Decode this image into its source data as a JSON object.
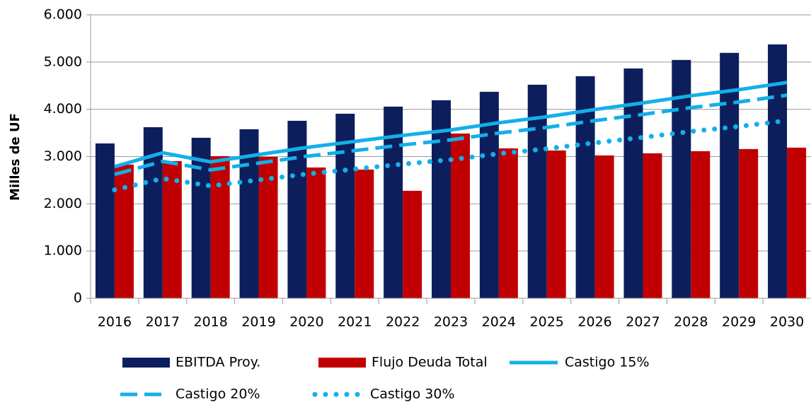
{
  "chart_data": {
    "type": "bar_line",
    "y_label": "Milles de UF",
    "categories": [
      "2016",
      "2017",
      "2018",
      "2019",
      "2020",
      "2021",
      "2022",
      "2023",
      "2024",
      "2025",
      "2026",
      "2027",
      "2028",
      "2029",
      "2030"
    ],
    "ylim": [
      0,
      6000
    ],
    "yticks": [
      0,
      {
        "value": 1000,
        "label": "1.000"
      },
      {
        "value": 2000,
        "label": "2.000"
      },
      {
        "value": 3000,
        "label": "3.000"
      },
      {
        "value": 4000,
        "label": "4.000"
      },
      {
        "value": 5000,
        "label": "5.000"
      },
      {
        "value": 6000,
        "label": "6.000"
      }
    ],
    "series": [
      {
        "name": "EBITDA Proy.",
        "color": "#0c1f5c",
        "kind": "bar",
        "values": [
          3278,
          3622,
          3398,
          3578,
          3757,
          3907,
          4057,
          4192,
          4371,
          4521,
          4701,
          4865,
          5045,
          5195,
          5374
        ]
      },
      {
        "name": "Flujo Deuda Total",
        "color": "#c00000",
        "kind": "bar",
        "values": [
          2830,
          2904,
          3009,
          2994,
          2769,
          2725,
          2275,
          3488,
          3174,
          3129,
          3024,
          3069,
          3114,
          3159,
          3189
        ]
      },
      {
        "name": "Castigo 15%",
        "color": "#12b0ea",
        "kind": "line",
        "style": "solid",
        "values": [
          2786,
          3079,
          2888,
          3041,
          3193,
          3321,
          3448,
          3563,
          3715,
          3843,
          3996,
          4135,
          4288,
          4416,
          4568
        ]
      },
      {
        "name": "Castigo 20%",
        "color": "#12b0ea",
        "kind": "line",
        "style": "dashed",
        "values": [
          2622,
          2898,
          2718,
          2862,
          3006,
          3126,
          3246,
          3354,
          3497,
          3617,
          3761,
          3892,
          4036,
          4156,
          4299
        ]
      },
      {
        "name": "Castigo 30%",
        "color": "#12b0ea",
        "kind": "line",
        "style": "dotted",
        "values": [
          2295,
          2535,
          2379,
          2505,
          2630,
          2735,
          2840,
          2934,
          3060,
          3165,
          3291,
          3406,
          3532,
          3637,
          3762
        ]
      }
    ]
  }
}
